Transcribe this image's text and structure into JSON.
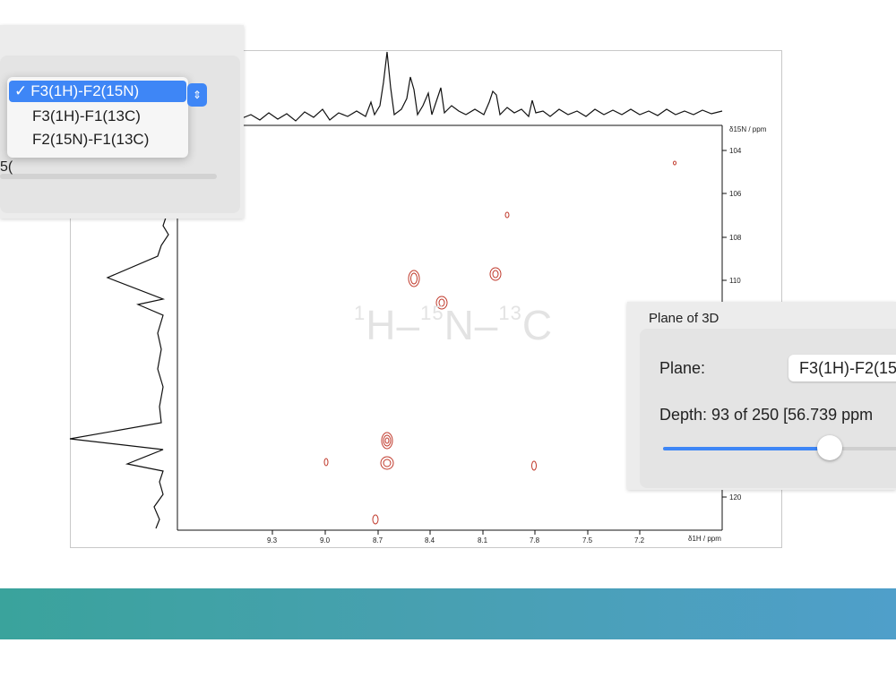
{
  "plot": {
    "watermark": {
      "h": "H",
      "sep": "–",
      "n": "N",
      "c": "C",
      "mass_h": "1",
      "mass_n": "15",
      "mass_c": "13"
    },
    "x_axis": {
      "label": "δ1H / ppm",
      "ticks": [
        "9.3",
        "9.0",
        "8.7",
        "8.4",
        "8.1",
        "7.8",
        "7.5",
        "7.2"
      ]
    },
    "y_axis": {
      "label": "δ15N / ppm",
      "ticks": [
        "104",
        "106",
        "108",
        "110",
        "120"
      ]
    }
  },
  "plane_menu": {
    "options": [
      "F3(1H)-F2(15N)",
      "F3(1H)-F1(13C)",
      "F2(15N)-F1(13C)"
    ],
    "selected": "F3(1H)-F2(15N)",
    "check_glyph": "✓",
    "stepper_icon": "chevron-up-down-icon",
    "partial_text": "5("
  },
  "plane_panel": {
    "title": "Plane of 3D",
    "plane_label": "Plane:",
    "plane_value": "F3(1H)-F2(15",
    "depth_text": "Depth: 93 of 250 [56.739 ppm",
    "depth_current": 93,
    "depth_total": 250
  },
  "colors": {
    "contour": "#c0392b",
    "accent": "#3e86f6",
    "banner_start": "#3aa39c",
    "banner_end": "#4f9fca"
  }
}
